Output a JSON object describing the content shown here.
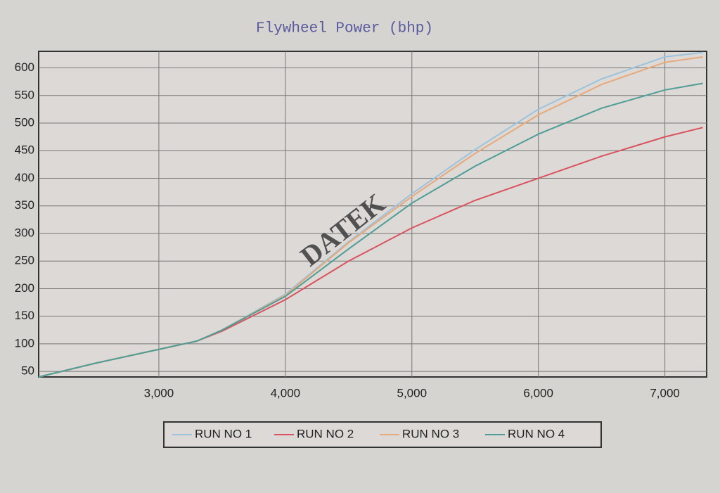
{
  "chart_data": {
    "type": "line",
    "title": "Flywheel Power (bhp)",
    "watermark": "DATEK",
    "x": [
      2050,
      2500,
      3000,
      3300,
      3500,
      4000,
      4500,
      5000,
      5500,
      6000,
      6500,
      7000,
      7300
    ],
    "series": [
      {
        "name": "RUN NO 1",
        "color": "#9cc3dc",
        "values": [
          40,
          65,
          90,
          105,
          125,
          190,
          285,
          372,
          452,
          525,
          580,
          620,
          628
        ]
      },
      {
        "name": "RUN NO 2",
        "color": "#d9535e",
        "values": [
          40,
          65,
          90,
          105,
          123,
          180,
          250,
          310,
          360,
          400,
          440,
          475,
          492
        ]
      },
      {
        "name": "RUN NO 3",
        "color": "#e8a97a",
        "values": [
          40,
          65,
          90,
          105,
          125,
          188,
          283,
          367,
          445,
          515,
          570,
          610,
          620
        ]
      },
      {
        "name": "RUN NO 4",
        "color": "#4f9e96",
        "values": [
          40,
          65,
          90,
          105,
          125,
          186,
          272,
          355,
          422,
          480,
          527,
          560,
          572
        ]
      }
    ],
    "xlim": [
      2050,
      7330
    ],
    "xticks": [
      {
        "value": 3000,
        "label": "3,000"
      },
      {
        "value": 4000,
        "label": "4,000"
      },
      {
        "value": 5000,
        "label": "5,000"
      },
      {
        "value": 6000,
        "label": "6,000"
      },
      {
        "value": 7000,
        "label": "7,000"
      }
    ],
    "ylim": [
      40,
      630
    ],
    "yticks": [
      50,
      100,
      150,
      200,
      250,
      300,
      350,
      400,
      450,
      500,
      550,
      600
    ],
    "grid": true
  }
}
